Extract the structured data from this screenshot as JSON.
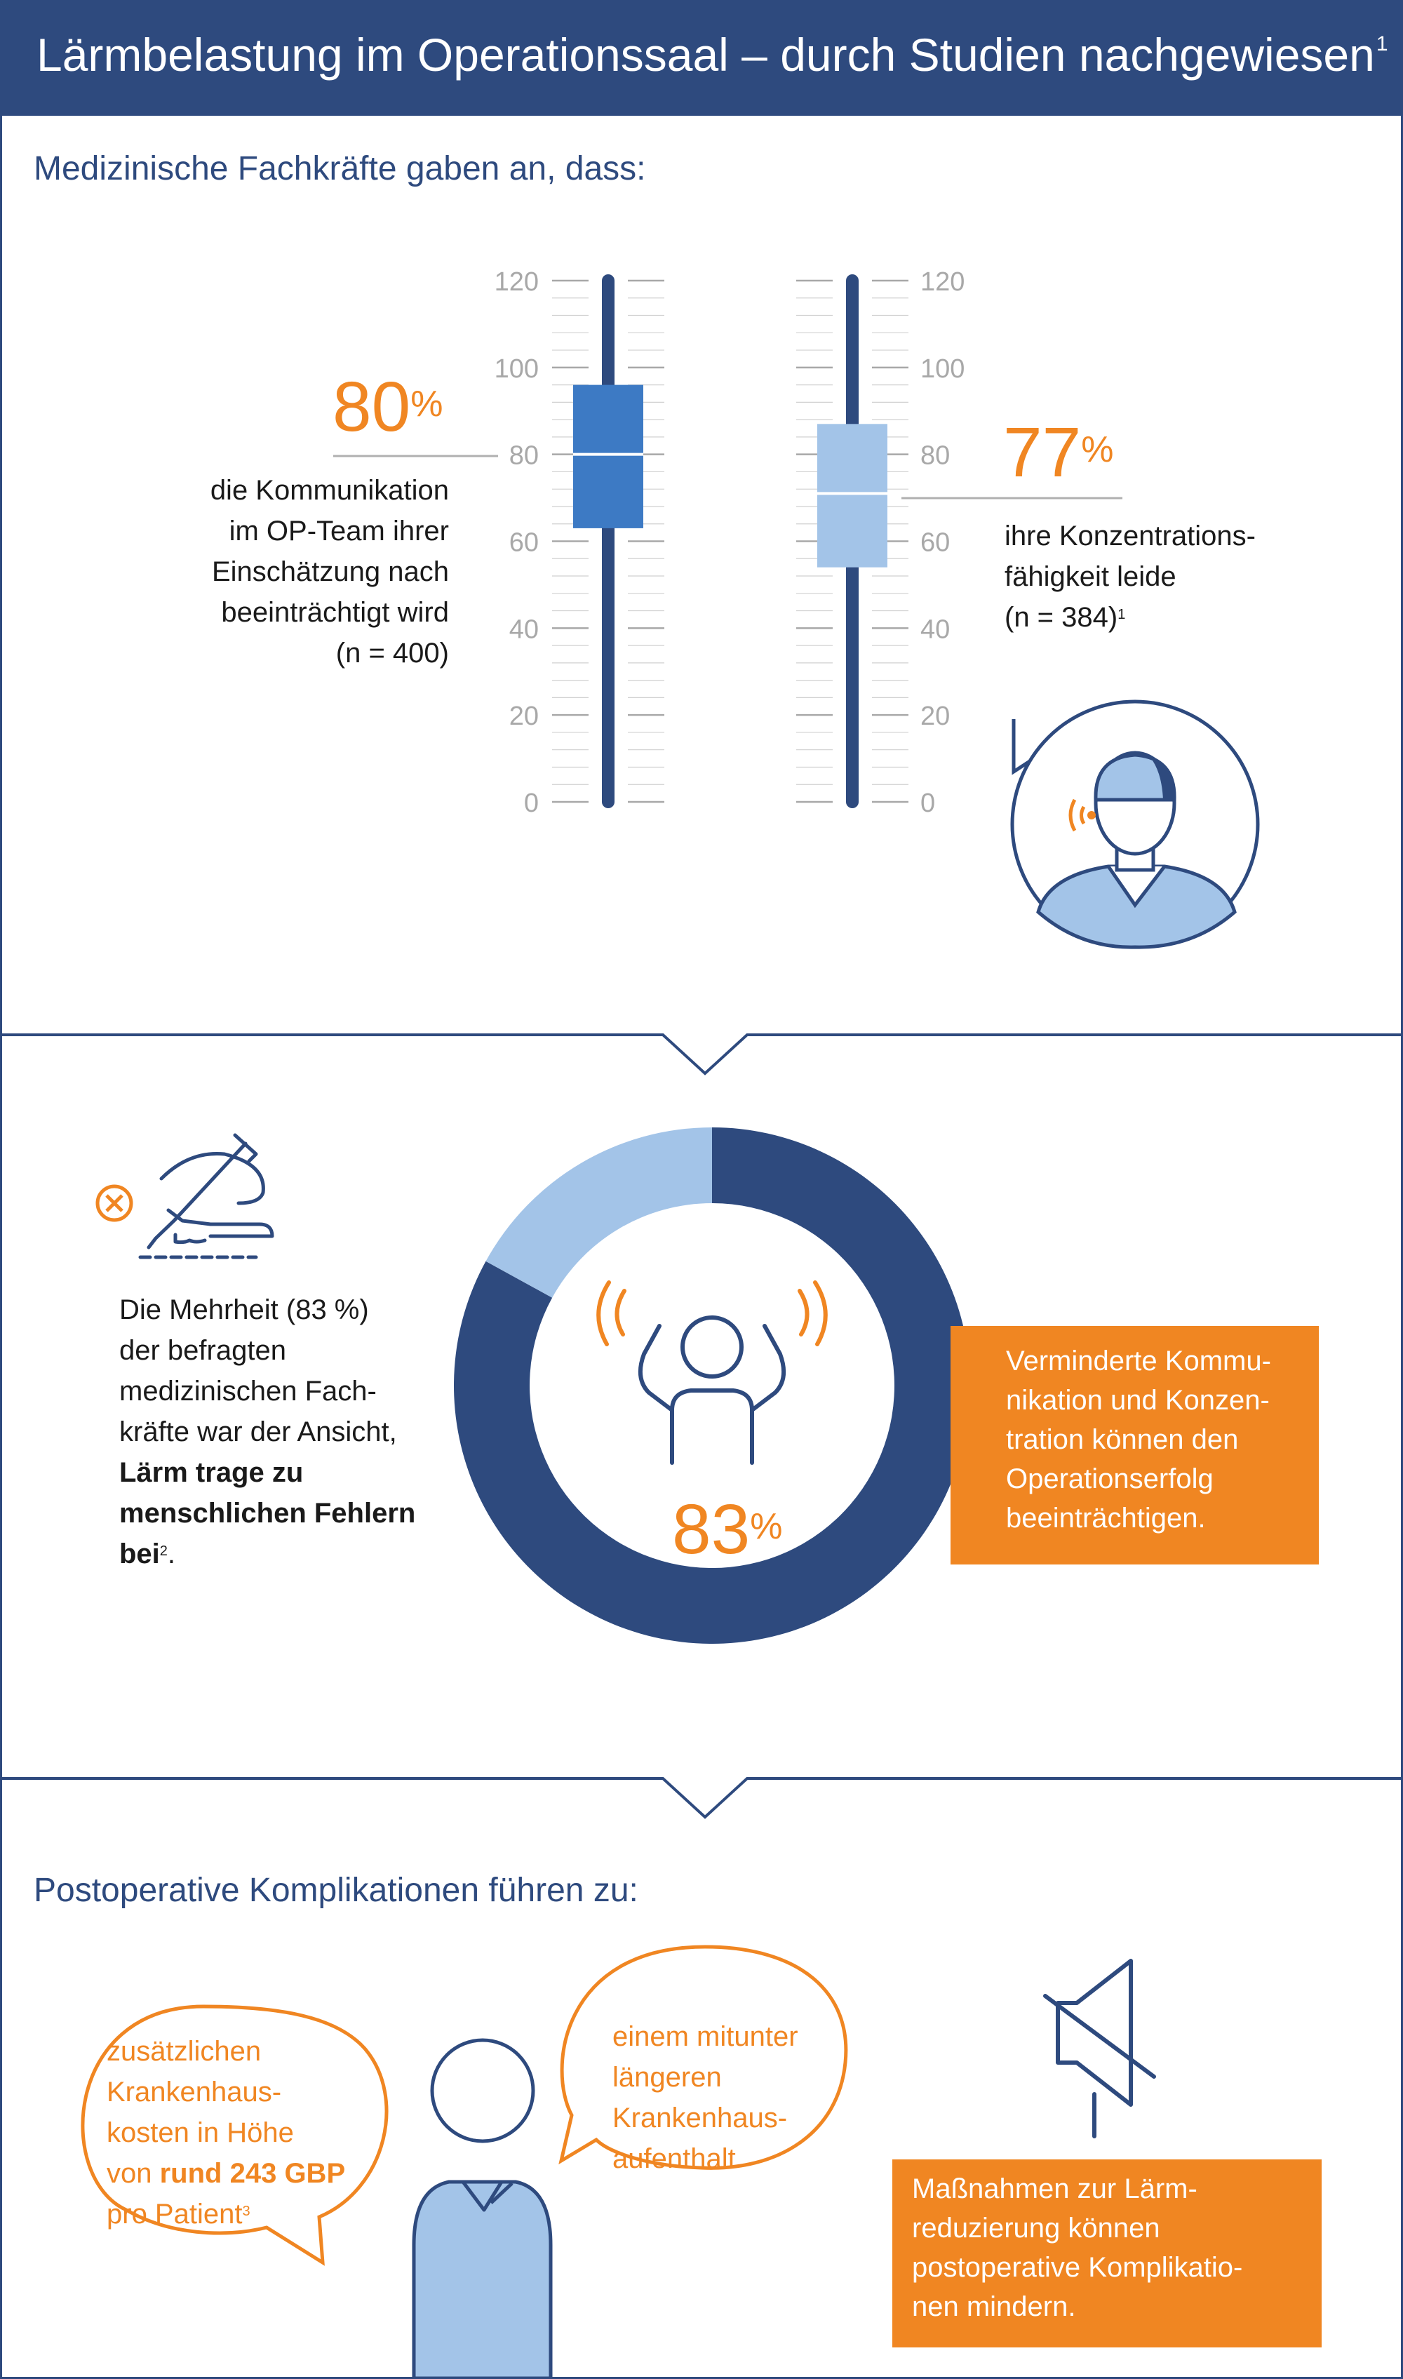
{
  "header": {
    "title": "Lärmbelastung im Operationssaal – durch Studien nachgewiesen",
    "title_ref": "1"
  },
  "section1": {
    "heading": "Medizinische Fachkräfte gaben an, dass:",
    "left": {
      "percent": "80",
      "percent_sign": "%",
      "lines": [
        "die Kommunikation",
        "im OP-Team ihrer",
        "Einschätzung nach",
        "beeinträchtigt wird",
        "(n = 400)"
      ]
    },
    "right": {
      "percent": "77",
      "percent_sign": "%",
      "lines": [
        "ihre Konzentrations-",
        "fähigkeit leide",
        "(n = 384)"
      ],
      "ref": "1"
    }
  },
  "section2": {
    "text_lines": [
      "Die Mehrheit (83 %)",
      "der befragten",
      "medizinischen Fach-",
      "kräfte war der Ansicht,"
    ],
    "bold_lines": [
      "Lärm trage zu",
      "menschlichen Fehlern",
      "bei"
    ],
    "bold_ref": "2",
    "bold_end": ".",
    "donut_percent": "83",
    "donut_sign": "%",
    "box_lines": [
      "Verminderte Kommu-",
      "nikation und Konzen-",
      "tration können den",
      "Operationserfolg",
      "beeinträchtigen."
    ]
  },
  "section3": {
    "heading": "Postoperative Komplikationen führen zu:",
    "bubble_left_lines": [
      "zusätzlichen",
      "Krankenhaus-",
      "kosten in Höhe"
    ],
    "bubble_left_prefix": "von ",
    "bubble_left_bold": "rund 243 GBP",
    "bubble_left_last": "pro Patient",
    "bubble_left_ref": "3",
    "bubble_right_lines": [
      "einem mitunter",
      "längeren",
      "Krankenhaus-",
      "aufenthalt"
    ],
    "box_lines": [
      "Maßnahmen zur Lärm-",
      "reduzierung können",
      "postoperative Komplikatio-",
      "nen mindern."
    ]
  },
  "chart_data": [
    {
      "type": "bar",
      "subtype": "boxplot",
      "ylim": [
        0,
        120
      ],
      "yticks": [
        0,
        20,
        40,
        60,
        80,
        100,
        120
      ],
      "series": [
        {
          "q1": 63,
          "median": 80,
          "q3": 96
        },
        {
          "q1": 54,
          "median": 71,
          "q3": 87
        }
      ]
    },
    {
      "type": "pie",
      "donut": true,
      "values": [
        83,
        17
      ]
    }
  ],
  "colors": {
    "navy": "#2e4a7e",
    "blue": "#3d7ac4",
    "light_blue": "#a3c4e8",
    "orange": "#f08622",
    "grey": "#b0b0b0"
  },
  "icons": [
    "surgeon-avatar-icon",
    "scalpel-hand-icon",
    "error-x-icon",
    "stressed-person-icon",
    "patient-icon",
    "speaker-muted-icon"
  ]
}
